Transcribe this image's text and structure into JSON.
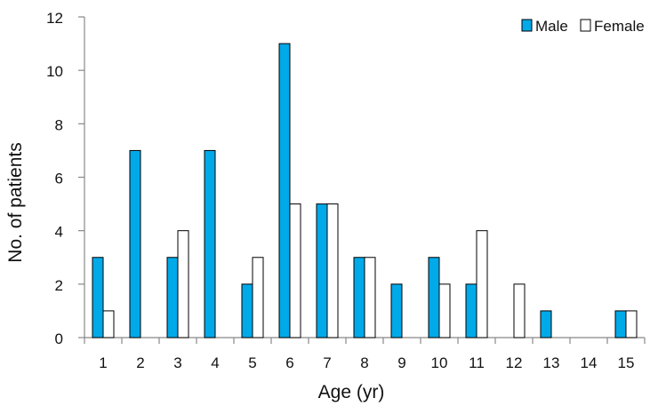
{
  "chart_data": {
    "type": "bar",
    "title": "",
    "xlabel": "Age (yr)",
    "ylabel": "No. of patients",
    "categories": [
      "1",
      "2",
      "3",
      "4",
      "5",
      "6",
      "7",
      "8",
      "9",
      "10",
      "11",
      "12",
      "13",
      "14",
      "15"
    ],
    "series": [
      {
        "name": "Male",
        "values": [
          3,
          7,
          3,
          7,
          2,
          11,
          5,
          3,
          2,
          3,
          2,
          0,
          1,
          0,
          1
        ],
        "color": "#00a9e8"
      },
      {
        "name": "Female",
        "values": [
          1,
          0,
          4,
          0,
          3,
          5,
          5,
          3,
          0,
          2,
          4,
          2,
          0,
          0,
          1
        ],
        "color": "#ffffff"
      }
    ],
    "ylim": [
      0,
      12
    ],
    "yticks": [
      "0",
      "2",
      "4",
      "6",
      "8",
      "10",
      "12"
    ],
    "grid": false,
    "legend_position": "top-right"
  }
}
